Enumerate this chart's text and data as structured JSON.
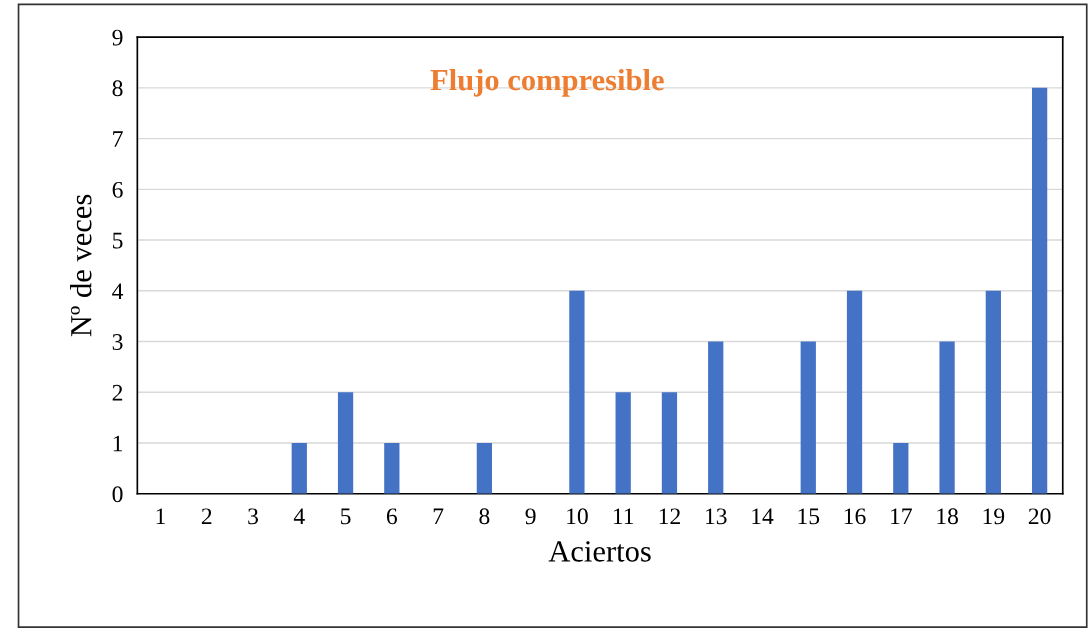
{
  "chart_data": {
    "type": "bar",
    "title": "Flujo compresible",
    "xlabel": "Aciertos",
    "ylabel": "Nº de veces",
    "categories": [
      "1",
      "2",
      "3",
      "4",
      "5",
      "6",
      "7",
      "8",
      "9",
      "10",
      "11",
      "12",
      "13",
      "14",
      "15",
      "16",
      "17",
      "18",
      "19",
      "20"
    ],
    "values": [
      0,
      0,
      0,
      1,
      2,
      1,
      0,
      1,
      0,
      4,
      2,
      2,
      3,
      0,
      3,
      4,
      1,
      3,
      4,
      8
    ],
    "color": "#4472c4",
    "ylim": [
      0,
      9
    ],
    "yticks": [
      0,
      1,
      2,
      3,
      4,
      5,
      6,
      7,
      8,
      9
    ],
    "grid": "y"
  }
}
